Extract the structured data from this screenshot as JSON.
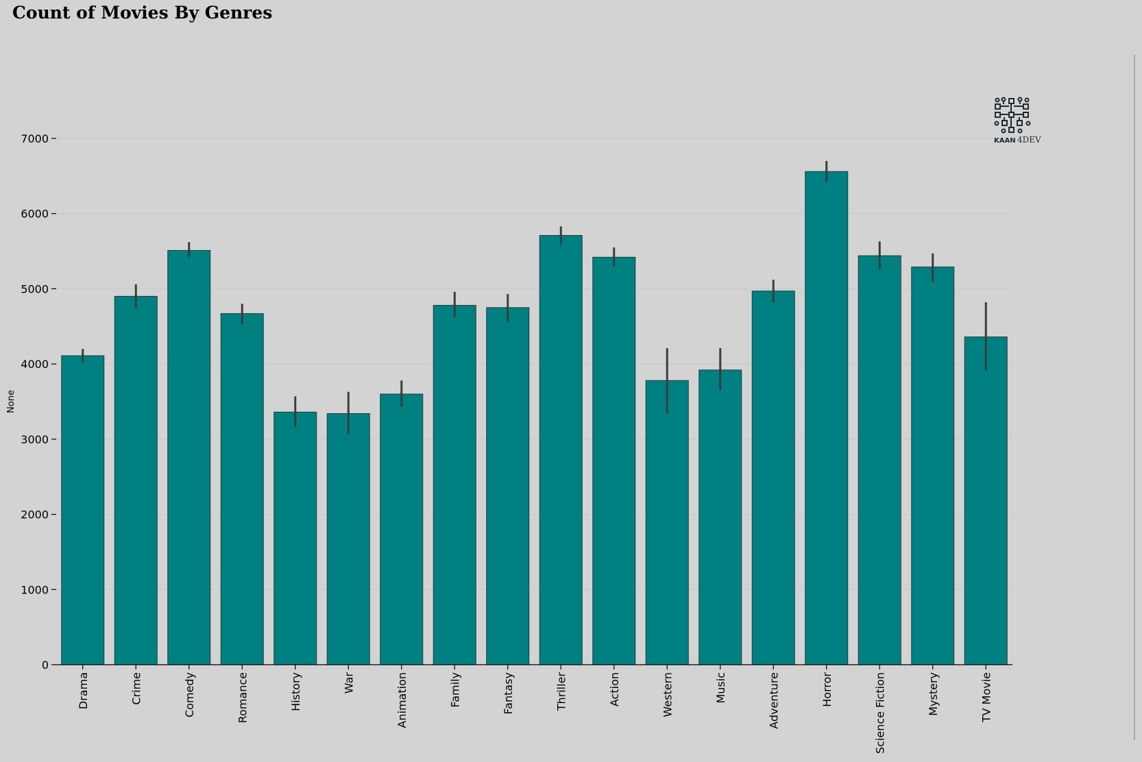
{
  "chart_data": {
    "type": "bar",
    "title": "Count of Movies By Genres",
    "xlabel": "",
    "ylabel": "None",
    "categories": [
      "Drama",
      "Crime",
      "Comedy",
      "Romance",
      "History",
      "War",
      "Animation",
      "Family",
      "Fantasy",
      "Thriller",
      "Action",
      "Western",
      "Music",
      "Adventure",
      "Horror",
      "Science Fiction",
      "Mystery",
      "TV Movie"
    ],
    "values": [
      4110,
      4900,
      5510,
      4670,
      3360,
      3340,
      3600,
      4780,
      4750,
      5710,
      5420,
      3780,
      3920,
      4970,
      6560,
      5440,
      5290,
      4360
    ],
    "error_low": [
      4020,
      4740,
      5420,
      4530,
      3160,
      3070,
      3430,
      4620,
      4560,
      5590,
      5300,
      3340,
      3650,
      4820,
      6420,
      5260,
      5090,
      3910
    ],
    "error_high": [
      4200,
      5060,
      5620,
      4800,
      3570,
      3630,
      3780,
      4960,
      4930,
      5830,
      5550,
      4210,
      4210,
      5120,
      6700,
      5630,
      5470,
      4820
    ],
    "ylim": [
      0,
      7000
    ],
    "yticks": [
      0,
      1000,
      2000,
      3000,
      4000,
      5000,
      6000,
      7000
    ],
    "grid": true,
    "colors": {
      "bar": "#008080",
      "bar_edge": "#1f3b3b",
      "error_bar": "#3c3c3c",
      "grid": "#c8c8c8",
      "background": "#d3d3d3"
    }
  },
  "logo": {
    "name": "circuit-brain-icon",
    "text_main": "KAAN",
    "text_suffix": "4DEV"
  }
}
